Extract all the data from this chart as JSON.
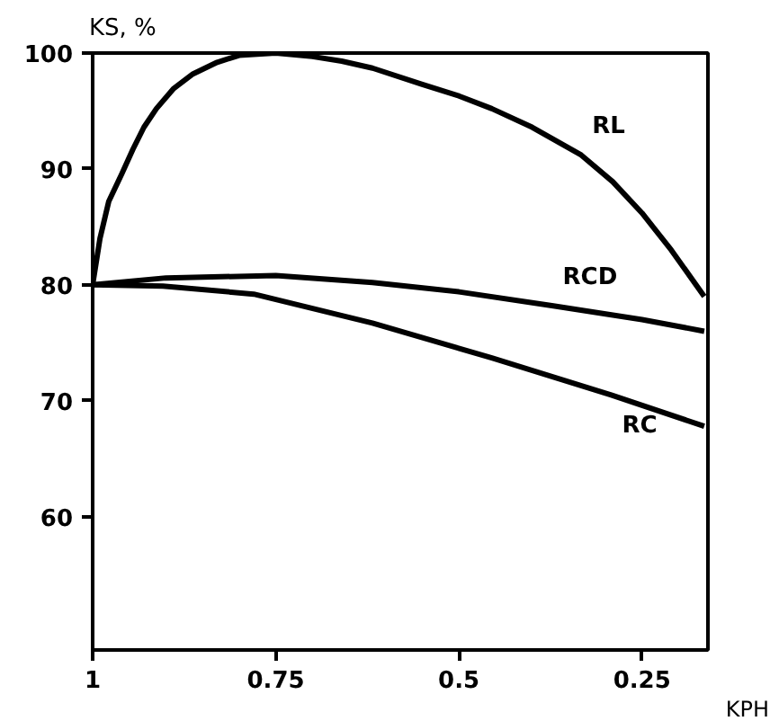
{
  "chart_data": {
    "type": "line",
    "xlabel": "KPH",
    "ylabel": "KS, %",
    "xlim": [
      1,
      0.16
    ],
    "xticks": [
      1,
      0.75,
      0.5,
      0.25
    ],
    "ylim": [
      48.5,
      100
    ],
    "yticks": [
      60,
      70,
      80,
      90,
      100
    ],
    "grid": false,
    "marker": "none",
    "line_style": "solid",
    "series": [
      {
        "name": "RL",
        "color": "#000000",
        "x": [
          1,
          0.99,
          0.978,
          0.96,
          0.945,
          0.93,
          0.913,
          0.89,
          0.863,
          0.83,
          0.8,
          0.75,
          0.7,
          0.66,
          0.618,
          0.55,
          0.5,
          0.455,
          0.4,
          0.333,
          0.29,
          0.25,
          0.21,
          0.165
        ],
        "values": [
          80,
          84,
          87.2,
          89.6,
          91.7,
          93.6,
          95.2,
          96.9,
          98.2,
          99.2,
          99.8,
          100,
          99.7,
          99.3,
          98.7,
          97.3,
          96.3,
          95.2,
          93.6,
          91.2,
          88.9,
          86.2,
          83,
          79.0
        ]
      },
      {
        "name": "RCD",
        "color": "#000000",
        "x": [
          1,
          0.9,
          0.75,
          0.618,
          0.5,
          0.373,
          0.25,
          0.165
        ],
        "values": [
          80,
          80.6,
          80.8,
          80.2,
          79.4,
          78.2,
          77.0,
          76.0
        ]
      },
      {
        "name": "RC",
        "color": "#000000",
        "x": [
          1,
          0.904,
          0.78,
          0.618,
          0.455,
          0.292,
          0.165
        ],
        "values": [
          80,
          79.9,
          79.2,
          76.7,
          73.7,
          70.5,
          67.8
        ]
      }
    ]
  }
}
